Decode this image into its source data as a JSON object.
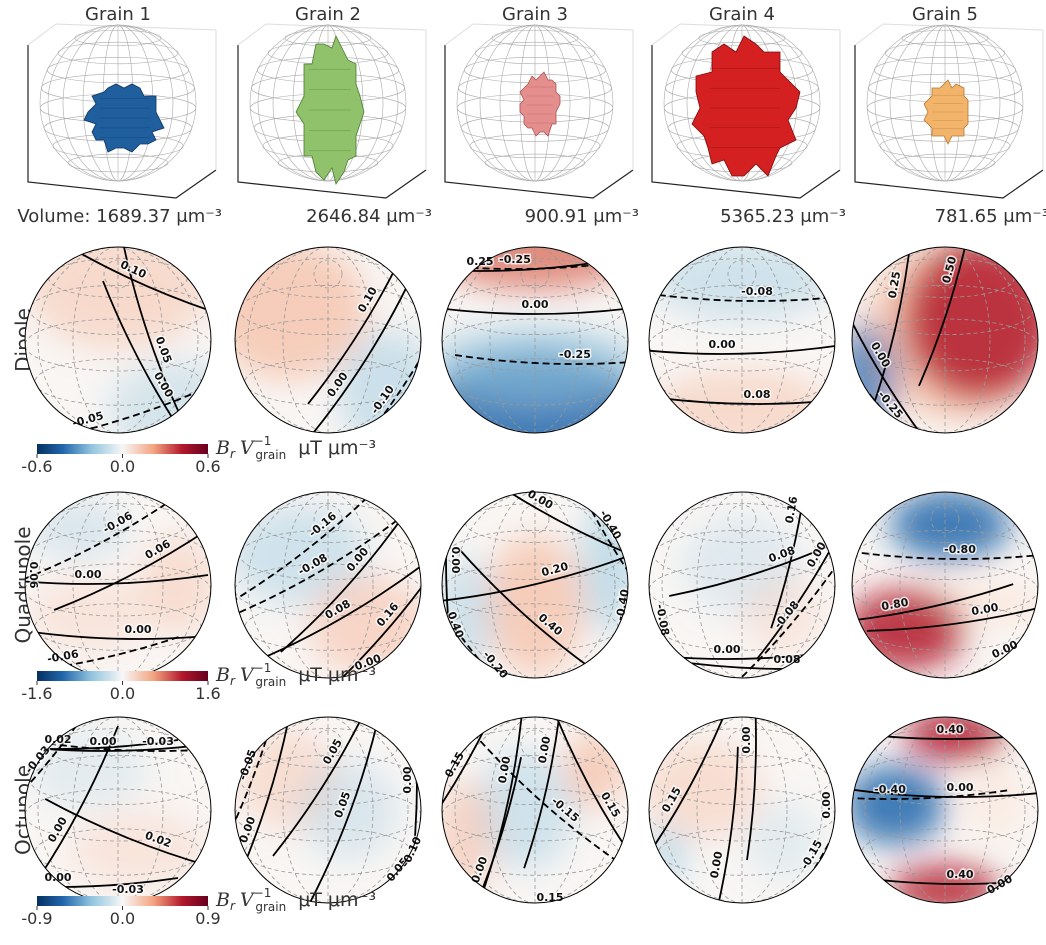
{
  "grains": [
    {
      "title": "Grain 1",
      "volume": "1689.37"
    },
    {
      "title": "Grain 2",
      "volume": "2646.84"
    },
    {
      "title": "Grain 3",
      "volume": "900.91"
    },
    {
      "title": "Grain 4",
      "volume": "5365.23"
    },
    {
      "title": "Grain 5",
      "volume": "781.65"
    }
  ],
  "volume_prefix": "Volume:",
  "volume_unit": "μm⁻³",
  "colorbar_label": {
    "symbol": "B",
    "symbol_sub": "r",
    "factor": "V",
    "factor_sup": "−1",
    "factor_sub": "grain",
    "unit": "μT μm⁻³"
  },
  "rows": [
    {
      "label": "Dipole",
      "colorbar_ticks": [
        "-0.6",
        "0.0",
        "0.6"
      ],
      "panels": [
        [
          "0.10",
          "0.05",
          "0.00",
          "-0.05"
        ],
        [
          "0.10",
          "0.00",
          "-0.10"
        ],
        [
          "0.25",
          "-0.25",
          "0.00",
          "-0.25"
        ],
        [
          "-0.08",
          "0.00",
          "0.08"
        ],
        [
          "0.50",
          "0.25",
          "0.00",
          "-0.25"
        ]
      ]
    },
    {
      "label": "Quadrupole",
      "colorbar_ticks": [
        "-1.6",
        "0.0",
        "1.6"
      ],
      "panels": [
        [
          "-0.06",
          "0.06",
          "0.00",
          "0.06",
          "0.00",
          "-0.06"
        ],
        [
          "-0.16",
          "-0.08",
          "0.00",
          "0.08",
          "0.16",
          "0.00"
        ],
        [
          "0.00",
          "0.00",
          "-0.40",
          "0.20",
          "0.40",
          "0.40",
          "-0.20",
          "-0.40"
        ],
        [
          "0.16",
          "0.08",
          "0.00",
          "-0.08",
          "-0.08",
          "0.00",
          "0.08"
        ],
        [
          "-0.80",
          "0.80",
          "0.00",
          "0.00"
        ]
      ]
    },
    {
      "label": "Octupole",
      "colorbar_ticks": [
        "-0.9",
        "0.0",
        "0.9"
      ],
      "panels": [
        [
          "0.02",
          "0.00",
          "-0.03",
          "-0.03",
          "0.00",
          "0.02",
          "0.00",
          "-0.03"
        ],
        [
          "0.05",
          "-0.05",
          "0.05",
          "0.00",
          "0.00",
          "0.05",
          "0.10"
        ],
        [
          "0.15",
          "0.00",
          "0.00",
          "-0.15",
          "0.15",
          "0.00",
          "0.15"
        ],
        [
          "0.00",
          "0.15",
          "0.00",
          "0.00",
          "-0.15"
        ],
        [
          "0.40",
          "-0.40",
          "0.00",
          "0.40",
          "0.00"
        ]
      ]
    }
  ]
}
